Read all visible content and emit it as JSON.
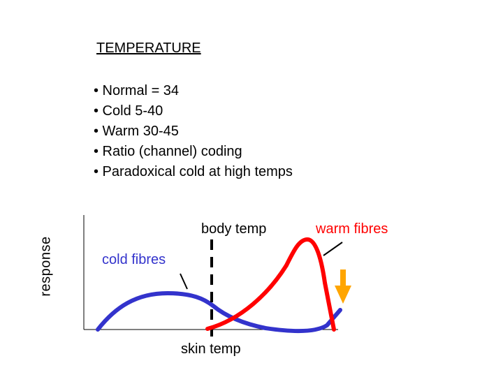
{
  "title": "TEMPERATURE",
  "bullets": [
    "• Normal = 34",
    "• Cold 5-40",
    "• Warm 30-45",
    "• Ratio (channel) coding",
    "• Paradoxical cold at high temps"
  ],
  "diagram": {
    "y_axis_label": "response",
    "body_temp_label": "body temp",
    "warm_fibres_label": "warm fibres",
    "cold_fibres_label": "cold fibres",
    "skin_temp_label": "skin temp",
    "colors": {
      "warm": "#ff0000",
      "cold": "#3333cc",
      "arrow": "#ffa500",
      "axis": "#000000"
    }
  }
}
